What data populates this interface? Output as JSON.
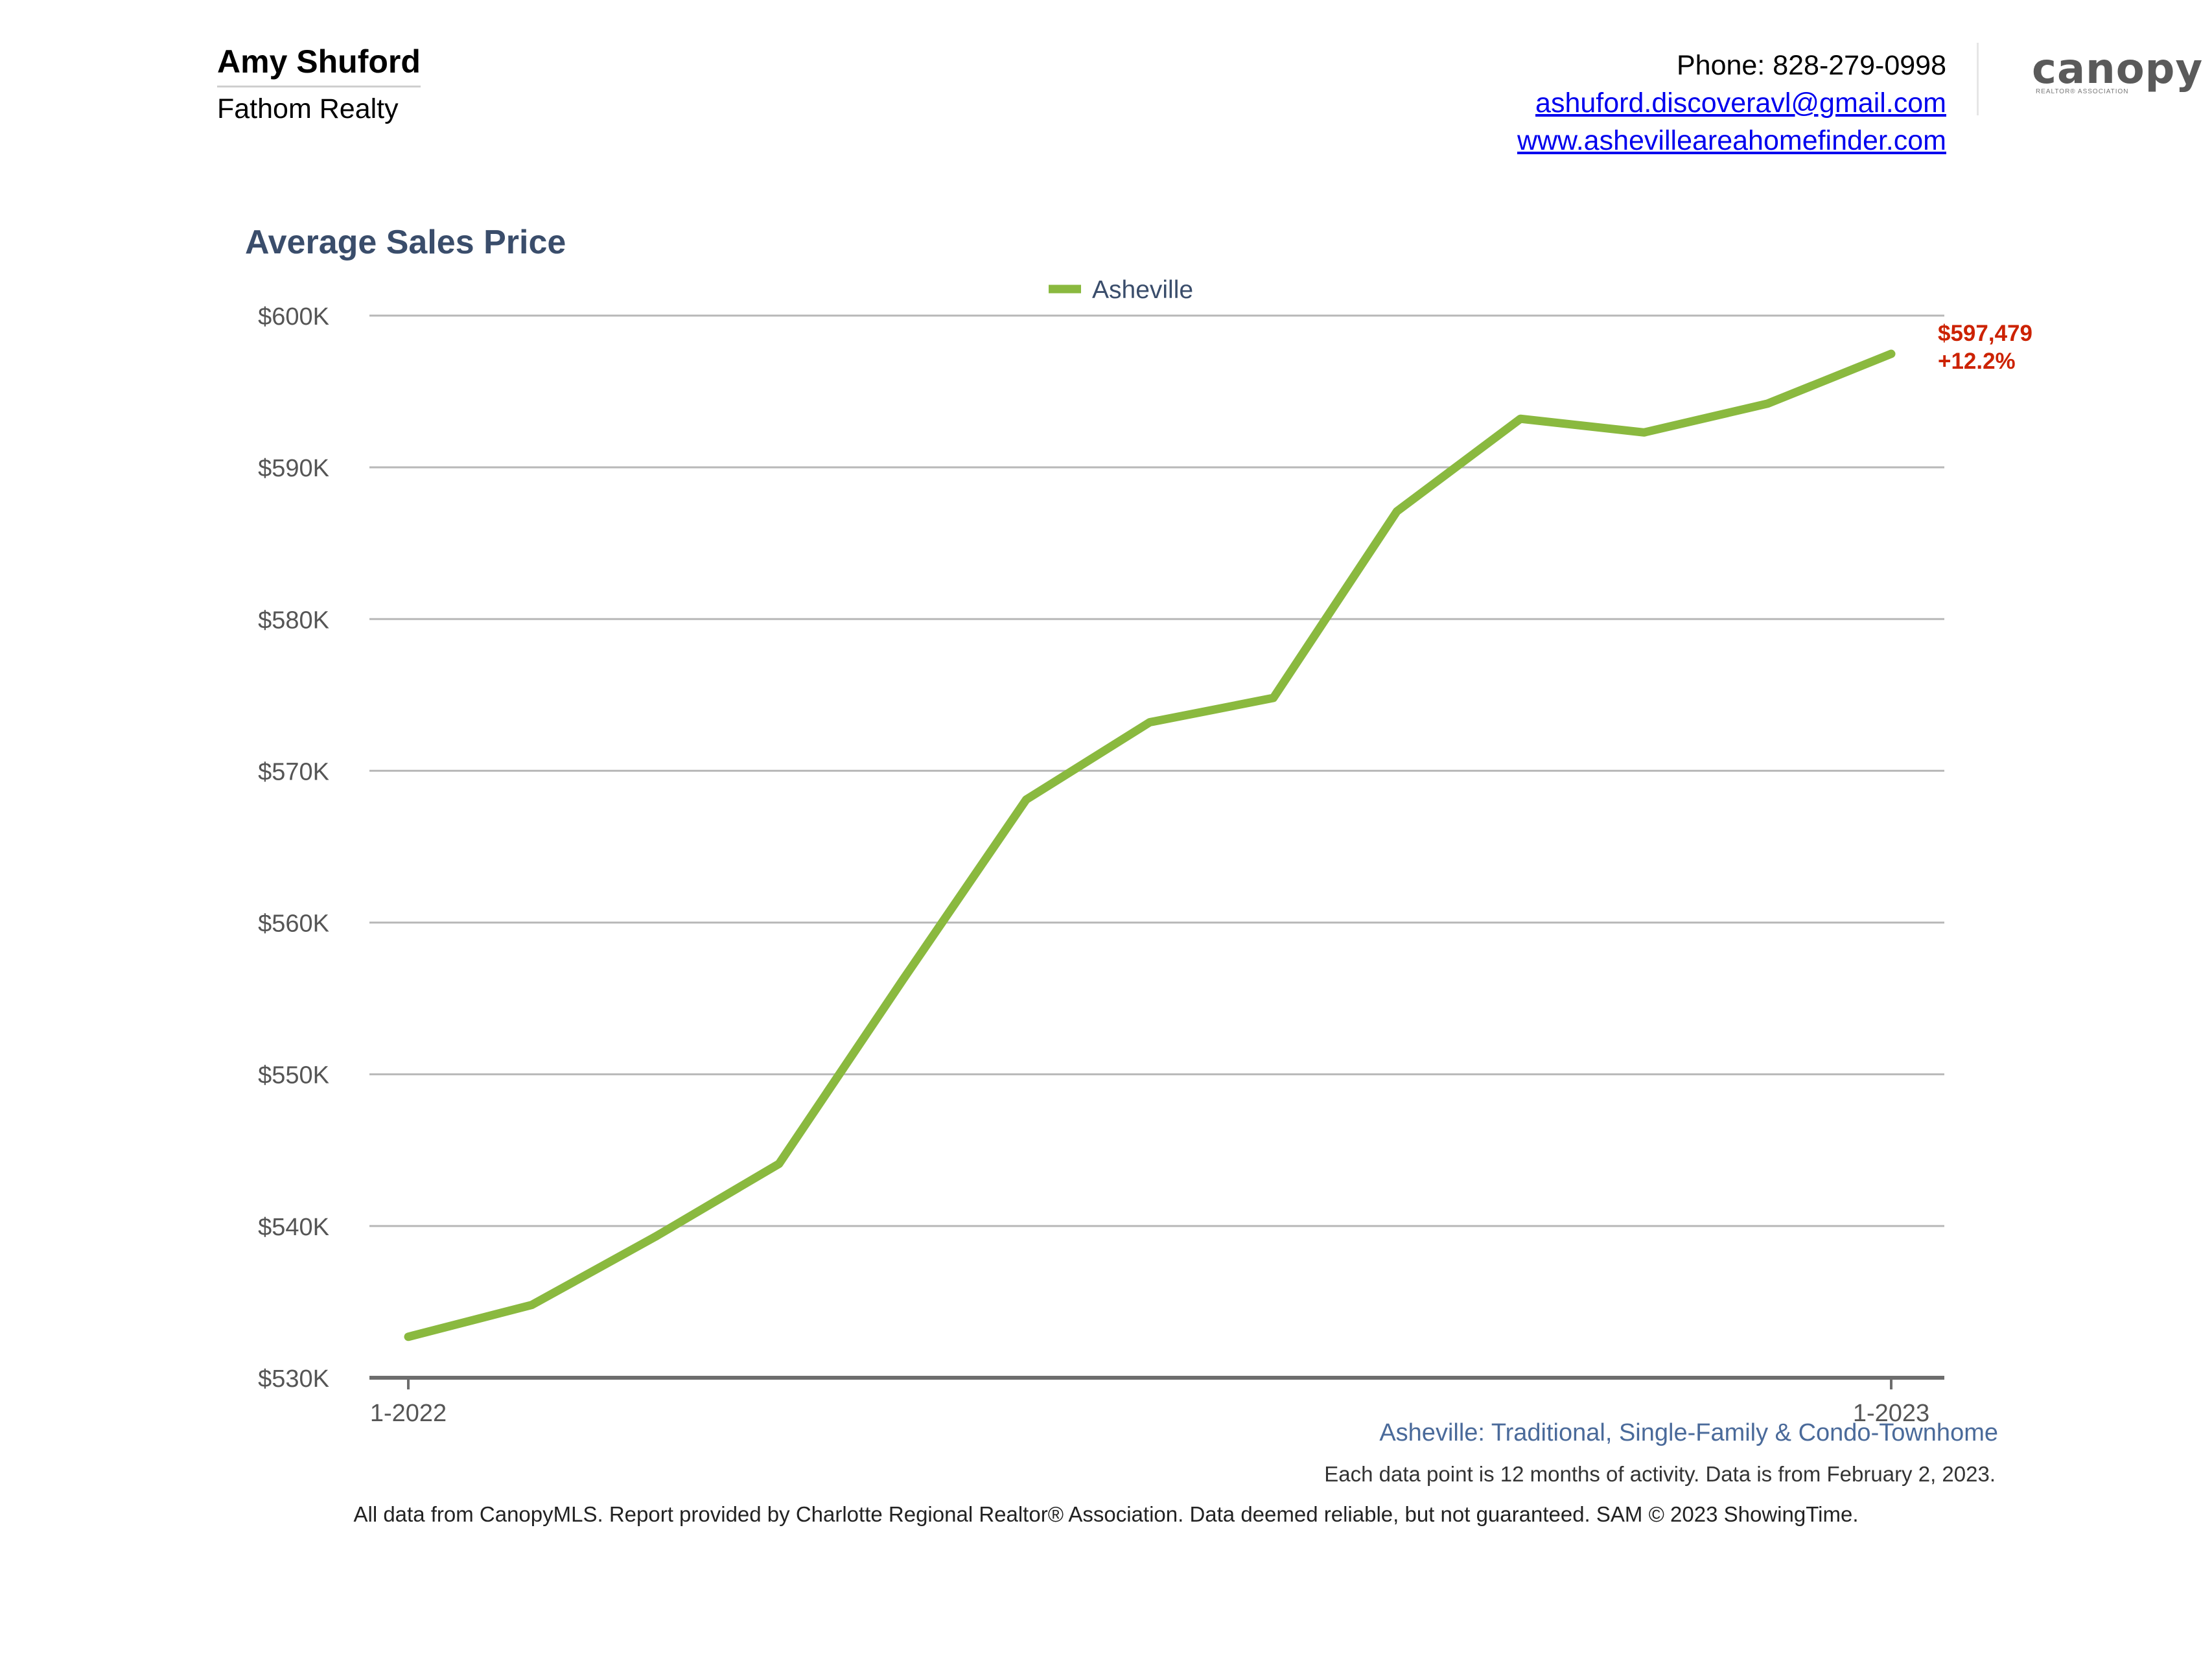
{
  "header": {
    "agent_name": "Amy Shuford",
    "company": "Fathom Realty",
    "phone": "Phone: 828-279-0998",
    "email": "ashuford.discoveravl@gmail.com",
    "website": "www.ashevilleareahomefinder.com",
    "logo_text": "canopy",
    "logo_subtext": "REALTOR® ASSOCIATION"
  },
  "chart_data": {
    "type": "line",
    "title": "Average Sales Price",
    "x": [
      "1-2022",
      "2-2022",
      "3-2022",
      "4-2022",
      "5-2022",
      "6-2022",
      "7-2022",
      "8-2022",
      "9-2022",
      "10-2022",
      "11-2022",
      "12-2022",
      "1-2023"
    ],
    "x_tick_labels": [
      "1-2022",
      "1-2023"
    ],
    "series": [
      {
        "name": "Asheville",
        "color": "#8ab93f",
        "values": [
          532700,
          534800,
          539300,
          544100,
          556200,
          568100,
          573200,
          574800,
          587100,
          593200,
          592300,
          594200,
          597479
        ]
      }
    ],
    "ylim": [
      530000,
      600000
    ],
    "y_ticks": [
      {
        "value": 600000,
        "label": "$600K"
      },
      {
        "value": 590000,
        "label": "$590K"
      },
      {
        "value": 580000,
        "label": "$580K"
      },
      {
        "value": 570000,
        "label": "$570K"
      },
      {
        "value": 560000,
        "label": "$560K"
      },
      {
        "value": 550000,
        "label": "$550K"
      },
      {
        "value": 540000,
        "label": "$540K"
      },
      {
        "value": 530000,
        "label": "$530K"
      }
    ],
    "annotation": {
      "value_label": "$597,479",
      "change_label": "+12.2%",
      "color": "#cc2200"
    },
    "legend_position": "top-center",
    "grid": true
  },
  "footer": {
    "series_description": "Asheville: Traditional, Single-Family & Condo-Townhome",
    "note": "Each data point is 12 months of activity. Data is from February 2, 2023.",
    "disclaimer": "All data from CanopyMLS. Report provided by Charlotte Regional Realtor® Association. Data deemed reliable, but not guaranteed. SAM © 2023 ShowingTime."
  }
}
